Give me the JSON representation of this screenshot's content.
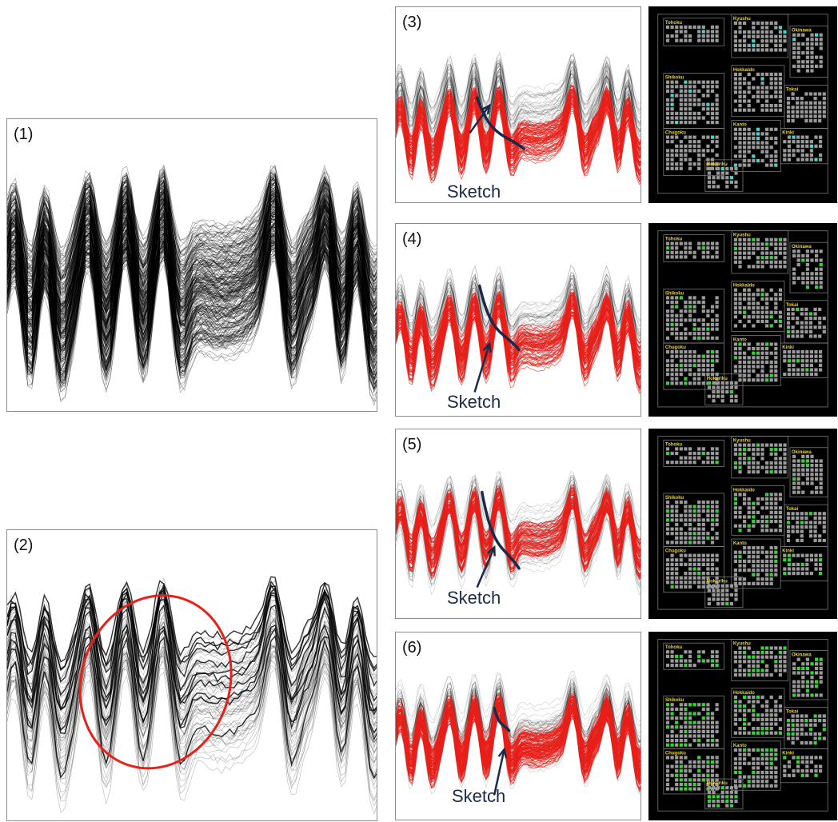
{
  "panels": [
    {
      "label": "(1)",
      "mode": "all"
    },
    {
      "label": "(2)",
      "mode": "sample"
    },
    {
      "label": "(3)",
      "mode": "match",
      "sketch_label": "Sketch"
    },
    {
      "label": "(4)",
      "mode": "match",
      "sketch_label": "Sketch"
    },
    {
      "label": "(5)",
      "mode": "match",
      "sketch_label": "Sketch"
    },
    {
      "label": "(6)",
      "mode": "match",
      "sketch_label": "Sketch"
    }
  ],
  "map_regions": [
    "Tohoku",
    "Kyushu",
    "Okinawa",
    "Shikoku",
    "Hokkaido",
    "Tokai",
    "Chugoku",
    "Kanto",
    "Kinki",
    "Hokuriku"
  ],
  "colors": {
    "series_default": "#000000",
    "series_matched": "#e8201a",
    "sketch_stroke": "#1c2a4a",
    "highlight_ellipse": "#e8201a",
    "map_background": "#000000",
    "map_cell": "#9a9a9a",
    "map_region_label": "#e6d23a",
    "map_highlight_3": "#4fd0c8",
    "map_highlight_other": "#39d13a"
  }
}
